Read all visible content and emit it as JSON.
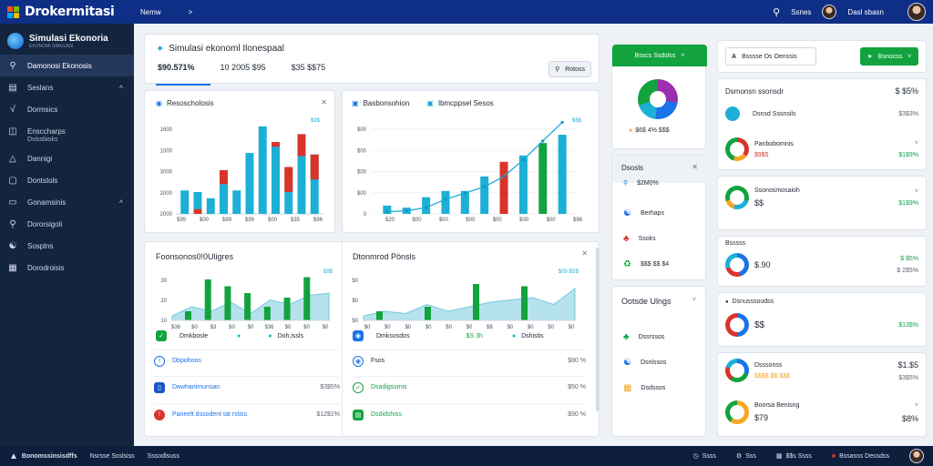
{
  "app": {
    "title": "Drokermitasi"
  },
  "top_nav": {
    "item1": "Nemw",
    "arrow": ">"
  },
  "top_right": {
    "search_label": "Ssnes",
    "user_label": "Dasl sbasn"
  },
  "sidebar": {
    "title": "Simulasi Ekonoria",
    "subtitle": "EKONOMI SIMULASI",
    "items": [
      {
        "label": "Damonosi Ekonosis",
        "icon": "search-icon"
      },
      {
        "label": "Seslans",
        "icon": "list-icon"
      },
      {
        "label": "Dormsics",
        "icon": "chart-icon"
      },
      {
        "label": "Ensccharps",
        "icon": "document-icon",
        "sub": "Dvissbioks"
      },
      {
        "label": "Dannigi",
        "icon": "bell-icon"
      },
      {
        "label": "Dontstols",
        "icon": "box-icon"
      },
      {
        "label": "Gonamsinis",
        "icon": "chat-icon"
      },
      {
        "label": "Dororsigoli",
        "icon": "search-icon"
      },
      {
        "label": "Sosplns",
        "icon": "group-icon"
      },
      {
        "label": "Dorodroisis",
        "icon": "layout-icon"
      }
    ]
  },
  "main": {
    "title": "Simulasi ekonoml Ilonespaal",
    "tabs": [
      "$90.571%",
      "10 2005 $95",
      "$35 $$75"
    ],
    "filter_label": "Rotoss"
  },
  "chart1": {
    "title": "Resoscholosis",
    "chart_data": {
      "type": "bar",
      "ylabels": [
        "1600",
        "1000",
        "3000",
        "2000",
        "2000"
      ],
      "xlabels": [
        "$99",
        "$00",
        "$99",
        "$99",
        "$00",
        "$35",
        "$96"
      ],
      "legend_top": "$9$",
      "values": [
        [
          300,
          0
        ],
        [
          280,
          60
        ],
        [
          200,
          0
        ],
        [
          560,
          180
        ],
        [
          300,
          0
        ],
        [
          780,
          0
        ],
        [
          1120,
          0
        ],
        [
          920,
          60
        ],
        [
          600,
          320
        ],
        [
          1020,
          280
        ],
        [
          760,
          320
        ]
      ],
      "series_colors": [
        "#1cb0d6",
        "#d9342c"
      ]
    }
  },
  "chart2": {
    "title": "Basbonsohion",
    "title2": "Ibmcppsel Sesos",
    "chart_data": {
      "type": "bar",
      "ylabels": [
        "$00",
        "$00",
        "$00",
        "$00",
        "0"
      ],
      "xlabels": [
        "$20",
        "$00",
        "$00",
        "$00",
        "$00",
        "$00",
        "$00",
        "$98"
      ],
      "legend_top": "$$$",
      "bars": [
        80,
        60,
        160,
        220,
        220,
        360,
        500,
        560,
        680,
        760
      ],
      "bar_colors": [
        "#1cb0d6",
        "#1cb0d6",
        "#1cb0d6",
        "#1cb0d6",
        "#1cb0d6",
        "#1cb0d6",
        "#d9342c",
        "#1cb0d6",
        "#12a33e",
        "#1cb0d6"
      ],
      "line": [
        20,
        30,
        60,
        140,
        200,
        260,
        360,
        520,
        700,
        880
      ]
    }
  },
  "chart3": {
    "title": "Foonsonos0!0Uligres",
    "chart_data": {
      "type": "area",
      "ylabels": [
        "30",
        "20",
        "10"
      ],
      "xlabels": [
        "$36",
        "$0",
        "$3",
        "$0",
        "$0",
        "$36",
        "$0",
        "$0",
        "$0"
      ],
      "legend_top": "$9$",
      "area": [
        20,
        60,
        40,
        80,
        30,
        90,
        70,
        110,
        120
      ],
      "bars": [
        40,
        180,
        150,
        120,
        60,
        100,
        190
      ]
    },
    "legend": {
      "a": "Dmkbosle",
      "b": "Doh,issls"
    },
    "rows": [
      {
        "label": "Dbpohoos",
        "val": "",
        "icon": "info-icon"
      },
      {
        "label": "Dawhanimunsan",
        "val": "$3$5%",
        "icon": "phone-icon"
      },
      {
        "label": "Paneelt dssodent tat rstiss",
        "val": "$12$1%",
        "icon": "alert-icon"
      }
    ]
  },
  "chart4": {
    "title": "Dtonmrod Pönsls",
    "chart_data": {
      "type": "area",
      "ylabels": [
        "$0",
        "$0",
        "$0"
      ],
      "xlabels": [
        "$0",
        "$0",
        "$0",
        "$0",
        "$0",
        "$0",
        "$$",
        "$0",
        "$0",
        "$0",
        "$0"
      ],
      "legend_top": "$09 $S$",
      "area": [
        20,
        40,
        30,
        70,
        40,
        60,
        80,
        90,
        100,
        70,
        140
      ],
      "bars": [
        40,
        60,
        160,
        150
      ]
    },
    "legend": {
      "a": "Dmksosdos",
      "b": "$S 3h",
      "c": "Dshistis"
    },
    "rows": [
      {
        "label": "Fsos",
        "val": "$90 %",
        "icon": "person-icon"
      },
      {
        "label": "Dsadigssmis",
        "val": "$50 %",
        "icon": "check-icon"
      },
      {
        "label": "Dsdidshiss",
        "val": "$90 %",
        "icon": "message-icon"
      }
    ]
  },
  "mid": {
    "button_label": "Bsscs Ssdslss",
    "pie_legend": "$6$ 4% $$$",
    "panel_title": "Dsosls",
    "panel_value": "$2M0%",
    "panel_items": [
      {
        "label": "Berhaps",
        "icon": "network-icon"
      },
      {
        "label": "Ssoks",
        "icon": "puzzle-icon"
      },
      {
        "label": "$$$ $$ $4",
        "icon": "recycle-icon"
      }
    ],
    "panel2_title": "Ootsde Ulngs",
    "panel2_items": [
      {
        "label": "Dssrssos",
        "icon": "tree-icon"
      },
      {
        "label": "Dsnlssos",
        "icon": "sitemap-icon"
      },
      {
        "label": "Dsdssos",
        "icon": "grid-icon"
      }
    ]
  },
  "right": {
    "search_placeholder": "Bsssse Os Oenssis",
    "button_label": "Bsnocss",
    "rows": [
      {
        "title": "Dsmonsn ssonsdr",
        "v1": "$ $5%",
        "sub": "Dsnsd Sssnsils",
        "v2": "$3$3%",
        "donut": "icon"
      },
      {
        "title": "Panbobomnis",
        "v1": "$1$9%",
        "sub": "$9$5",
        "v2": "",
        "donut": "tri"
      },
      {
        "title": "Ssonosmosaioh",
        "v1": "$1$9%",
        "sub": "$$",
        "v2": "",
        "donut": "quad"
      },
      {
        "title": "Bsssss",
        "v1": "$ $5%",
        "sub": "$.90",
        "v2": "$ 2$5%",
        "donut": "tri2"
      },
      {
        "title": "Dsnusssoudss",
        "v1": "$13$%",
        "sub": "$$",
        "v2": "",
        "donut": "half"
      },
      {
        "title": "Dsssonss",
        "v1": "$1.$5",
        "sub": "$$$$ $$ $$$",
        "v2": "$3$5%",
        "donut": "quad2"
      },
      {
        "title": "Boorsa Benisng",
        "v1": "$8%",
        "sub": "$79",
        "v2": "",
        "donut": "yellow"
      }
    ]
  },
  "bottom": {
    "left": [
      "Bonomssinsisdffs",
      "Nsrsse Ssslsiss",
      "Sssodlsuss"
    ],
    "right": [
      "Ssss",
      "Sss",
      "$$s Ssss",
      "Bssasss Dessdss"
    ]
  }
}
